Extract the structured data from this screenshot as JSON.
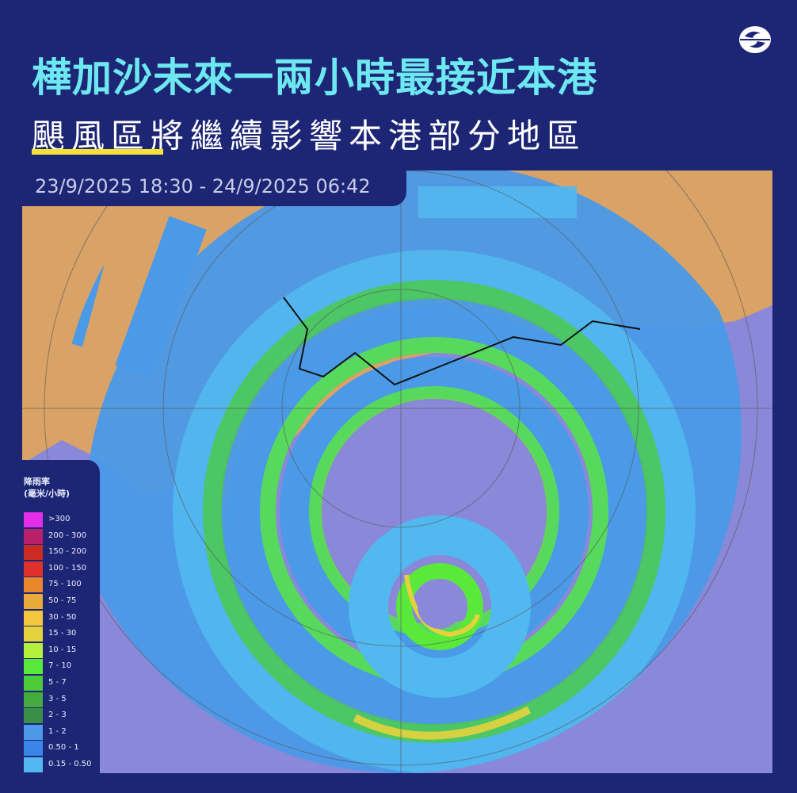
{
  "header": {
    "title": "樺加沙未來一兩小時最接近本港",
    "subtitle": "颶風區將繼續影響本港部分地區",
    "time_range": "23/9/2025 18:30 - 24/9/2025 06:42",
    "highlight_color": "#f4e23a",
    "title_color": "#6ee8f0",
    "logo_icon": "swirl-logo-icon"
  },
  "legend": {
    "title_line1": "降雨率",
    "title_line2": "(毫米/小時)",
    "items": [
      {
        "label": ">300",
        "color": "#e22ee8"
      },
      {
        "label": "200 - 300",
        "color": "#b8206a"
      },
      {
        "label": "150 - 200",
        "color": "#cc2a22"
      },
      {
        "label": "100 - 150",
        "color": "#e0302a"
      },
      {
        "label": "75 - 100",
        "color": "#e8862e"
      },
      {
        "label": "50 - 75",
        "color": "#e8aa38"
      },
      {
        "label": "30 - 50",
        "color": "#f4c83e"
      },
      {
        "label": "15 - 30",
        "color": "#e4d23c"
      },
      {
        "label": "10 - 15",
        "color": "#b4f03c"
      },
      {
        "label": "7 - 10",
        "color": "#5ae83a"
      },
      {
        "label": "5 - 7",
        "color": "#4ccc38"
      },
      {
        "label": "3 - 5",
        "color": "#44ac3e"
      },
      {
        "label": "2 - 3",
        "color": "#3a8e48"
      },
      {
        "label": "1 - 2",
        "color": "#4a9ae8"
      },
      {
        "label": "0.50 - 1",
        "color": "#3a86e8"
      },
      {
        "label": "0.15 - 0.50",
        "color": "#52b8f0"
      }
    ]
  },
  "map": {
    "land_color": "#d9a266",
    "sea_color": "#8a88d8"
  }
}
